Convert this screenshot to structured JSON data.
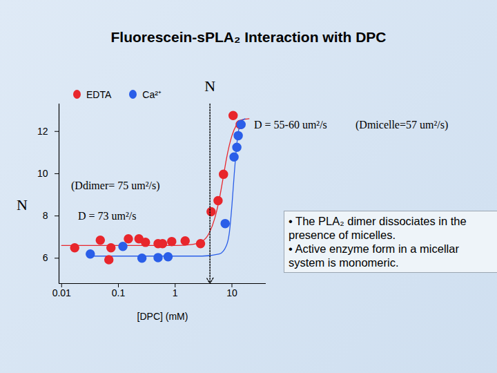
{
  "chart_data": {
    "type": "scatter",
    "title": "Fluorescein-sPLA₂ Interaction with DPC",
    "xlabel": "[DPC] (mM)",
    "ylabel": "N",
    "log": "x",
    "grid": false,
    "legend": "top-left",
    "xlim": [
      0.009,
      40
    ],
    "xticks": [
      0.01,
      0.1,
      1,
      10
    ],
    "ylim": [
      4.8,
      13.3
    ],
    "yticks": [
      6,
      8,
      10,
      12
    ],
    "series": [
      {
        "name": "EDTA",
        "color": "#e8262c",
        "marker": "circle",
        "x": [
          0.017,
          0.048,
          0.068,
          0.074,
          0.15,
          0.23,
          0.3,
          0.5,
          0.6,
          0.87,
          1.5,
          2.8,
          4.3,
          5.7,
          7.1,
          10.5,
          14
        ],
        "values": [
          6.49,
          6.85,
          5.93,
          6.49,
          6.92,
          6.92,
          6.75,
          6.69,
          6.69,
          6.79,
          6.82,
          6.69,
          8.2,
          8.72,
          9.97,
          12.75,
          12.33
        ],
        "fit": {
          "x": [
            0.01,
            1,
            2,
            3,
            4,
            5,
            6,
            7,
            8,
            10,
            12,
            15,
            20
          ],
          "values": [
            6.6,
            6.6,
            6.65,
            6.8,
            7.2,
            7.9,
            8.8,
            9.8,
            10.7,
            11.8,
            12.3,
            12.55,
            12.6
          ]
        }
      },
      {
        "name": "Ca²⁺",
        "color": "#2a5ee8",
        "marker": "circle",
        "x": [
          0.032,
          0.12,
          0.26,
          0.5,
          0.75,
          7.6,
          10.9,
          12.2,
          12.9,
          14.5
        ],
        "values": [
          6.2,
          6.56,
          6.0,
          6.03,
          6.07,
          7.64,
          10.79,
          11.25,
          11.8,
          12.33
        ],
        "fit": {
          "x": [
            0.03,
            3,
            6,
            8,
            9,
            10,
            11,
            12,
            13,
            15,
            17
          ],
          "values": [
            6.1,
            6.1,
            6.2,
            6.6,
            7.2,
            8.5,
            10.0,
            11.2,
            12.0,
            12.5,
            12.6
          ]
        }
      }
    ],
    "vline": {
      "x": 4.1,
      "label": "N"
    },
    "annotations": [
      "D = 55-60 um²/s",
      "(Dmicelle=57 um²/s)",
      "(Ddimer= 75 um²/s)",
      "D = 73 um²/s"
    ],
    "notes": [
      "• The  PLA₂ dimer dissociates in the presence of micelles.",
      "• Active enzyme form in a micellar system is monomeric."
    ]
  }
}
